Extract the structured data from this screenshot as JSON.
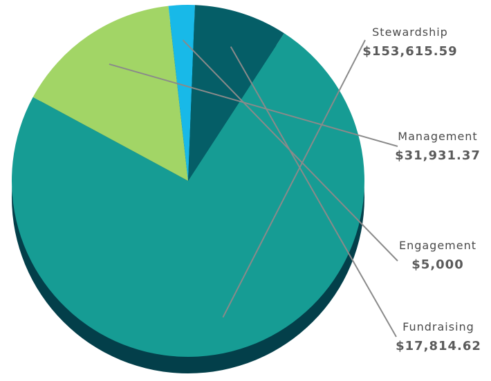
{
  "chart_data": {
    "type": "pie",
    "title": "",
    "slices": [
      {
        "name": "Stewardship",
        "value_label": "$153,615.59",
        "value": 153615.59,
        "color": "#169c94",
        "shadow": "#0e5f5c"
      },
      {
        "name": "Management",
        "value_label": "$31,931.37",
        "value": 31931.37,
        "color": "#a2d566",
        "shadow": "#4f6e2c"
      },
      {
        "name": "Engagement",
        "value_label": "$5,000",
        "value": 5000,
        "color": "#18b9e8",
        "shadow": "#0c6b86"
      },
      {
        "name": "Fundraising",
        "value_label": "$17,814.62",
        "value": 17814.62,
        "color": "#055e67",
        "shadow": "#033a40"
      }
    ],
    "side_color": "#033f4a",
    "label_color": "#4a4a4a",
    "leader_color": "#8a8a8a"
  }
}
